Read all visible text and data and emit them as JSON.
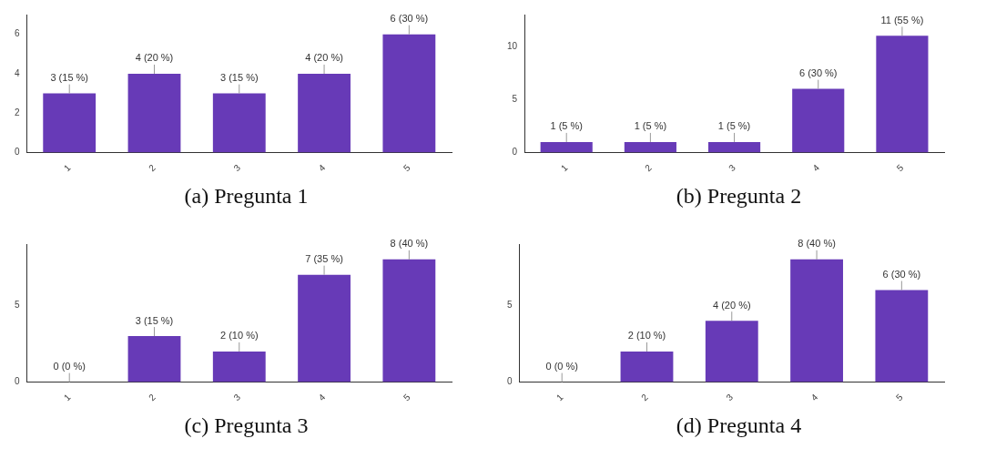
{
  "chart_data": [
    {
      "type": "bar",
      "title": "(a) Pregunta 1",
      "categories": [
        "1",
        "2",
        "3",
        "4",
        "5"
      ],
      "values": [
        3,
        4,
        3,
        4,
        6
      ],
      "color": "#673ab7",
      "value_labels": [
        "3 (15 %)",
        "4 (20 %)",
        "3 (15 %)",
        "4 (20 %)",
        "6 (30 %)"
      ],
      "ylim": [
        0,
        7
      ],
      "yticks": [
        0,
        2,
        4,
        6
      ],
      "grid": false,
      "legend": false
    },
    {
      "type": "bar",
      "title": "(b) Pregunta 2",
      "categories": [
        "1",
        "2",
        "3",
        "4",
        "5"
      ],
      "values": [
        1,
        1,
        1,
        6,
        11
      ],
      "color": "#673ab7",
      "value_labels": [
        "1 (5 %)",
        "1 (5 %)",
        "1 (5 %)",
        "6 (30 %)",
        "11 (55 %)"
      ],
      "ylim": [
        0,
        13
      ],
      "yticks": [
        0,
        5,
        10
      ],
      "grid": false,
      "legend": false
    },
    {
      "type": "bar",
      "title": "(c) Pregunta 3",
      "categories": [
        "1",
        "2",
        "3",
        "4",
        "5"
      ],
      "values": [
        0,
        3,
        2,
        7,
        8
      ],
      "color": "#673ab7",
      "value_labels": [
        "0 (0 %)",
        "3 (15 %)",
        "2 (10 %)",
        "7 (35 %)",
        "8 (40 %)"
      ],
      "ylim": [
        0,
        9
      ],
      "yticks": [
        0,
        5
      ],
      "grid": false,
      "legend": false
    },
    {
      "type": "bar",
      "title": "(d) Pregunta 4",
      "categories": [
        "1",
        "2",
        "3",
        "4",
        "5"
      ],
      "values": [
        0,
        2,
        4,
        8,
        6
      ],
      "color": "#673ab7",
      "value_labels": [
        "0 (0 %)",
        "2 (10 %)",
        "4 (20 %)",
        "8 (40 %)",
        "6 (30 %)"
      ],
      "ylim": [
        0,
        9
      ],
      "yticks": [
        0,
        5
      ],
      "grid": false,
      "legend": false
    }
  ]
}
